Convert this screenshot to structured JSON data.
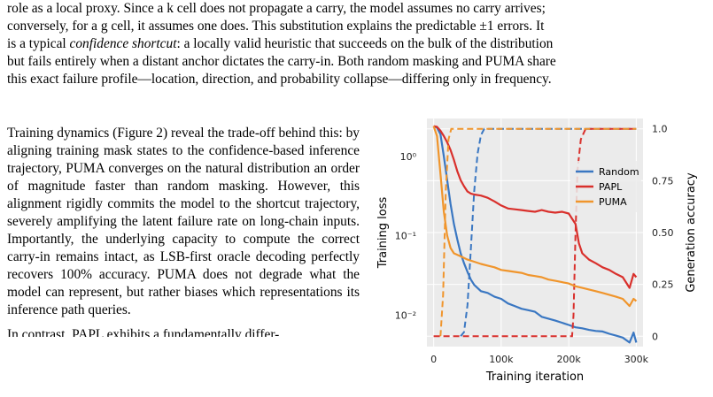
{
  "top_paragraph": {
    "line1": "role as a local proxy. Since a k cell does not propagate a carry, the model assumes no carry arrives;",
    "line2": "conversely, for a g cell, it assumes one does. This substitution explains the predictable ±1 errors. It",
    "line3a": "is a typical ",
    "line3_em": "confidence shortcut",
    "line3b": ": a locally valid heuristic that succeeds on the bulk of the distribution",
    "line4": "but fails entirely when a distant anchor dictates the carry-in. Both random masking and PUMA share",
    "line5": "this exact failure profile—location, direction, and probability collapse—differing only in frequency."
  },
  "left_paragraph": "Training dynamics (Figure 2) reveal the trade-off behind this: by aligning training mask states to the confidence-based inference trajectory, PUMA converges on the natural distribution an order of magnitude faster than random masking. However, this alignment rigidly commits the model to the shortcut trajectory, severely amplifying the latent failure rate on long-chain inputs. Importantly, the underlying capacity to compute the correct carry-in remains intact, as LSB-first oracle decoding perfectly recovers 100% accuracy. PUMA does not degrade what the model can represent, but rather biases which representations its inference path queries.",
  "next_paragraph": "In contrast, PAPL exhibits a fundamentally differ-",
  "chart_data": {
    "type": "line",
    "xlabel": "Training iteration",
    "ylabel_left": "Training loss",
    "ylabel_right": "Generation accuracy",
    "x_ticks": [
      "0",
      "100k",
      "200k",
      "300k"
    ],
    "y_left_ticks": [
      "10⁰",
      "10⁻¹",
      "10⁻²"
    ],
    "y_right_ticks": [
      "0",
      "0.25",
      "0.50",
      "0.75",
      "1.0"
    ],
    "xlim": [
      -10000,
      310000
    ],
    "y_left_scale": "log",
    "y_left_lim": [
      0.004,
      3
    ],
    "y_right_lim": [
      -0.05,
      1.05
    ],
    "legend_position": "upper-right",
    "grid": true,
    "colors": {
      "Random": "#3a77c2",
      "PAPL": "#d9302c",
      "PUMA": "#f0952c"
    },
    "series": [
      {
        "name": "Random",
        "loss": [
          [
            0,
            2.4
          ],
          [
            5000,
            2.3
          ],
          [
            10000,
            1.9
          ],
          [
            15000,
            1.0
          ],
          [
            20000,
            0.5
          ],
          [
            25000,
            0.25
          ],
          [
            30000,
            0.14
          ],
          [
            35000,
            0.09
          ],
          [
            40000,
            0.06
          ],
          [
            45000,
            0.045
          ],
          [
            50000,
            0.035
          ],
          [
            55000,
            0.028
          ],
          [
            60000,
            0.024
          ],
          [
            70000,
            0.02
          ],
          [
            80000,
            0.019
          ],
          [
            90000,
            0.017
          ],
          [
            100000,
            0.016
          ],
          [
            110000,
            0.014
          ],
          [
            120000,
            0.013
          ],
          [
            130000,
            0.012
          ],
          [
            140000,
            0.0115
          ],
          [
            150000,
            0.011
          ],
          [
            160000,
            0.0095
          ],
          [
            170000,
            0.009
          ],
          [
            180000,
            0.0085
          ],
          [
            190000,
            0.008
          ],
          [
            200000,
            0.0075
          ],
          [
            210000,
            0.007
          ],
          [
            220000,
            0.0068
          ],
          [
            230000,
            0.0065
          ],
          [
            240000,
            0.0063
          ],
          [
            250000,
            0.0062
          ],
          [
            260000,
            0.0058
          ],
          [
            270000,
            0.0055
          ],
          [
            280000,
            0.0052
          ],
          [
            290000,
            0.0045
          ],
          [
            296000,
            0.006
          ],
          [
            300000,
            0.0045
          ]
        ],
        "accuracy": [
          [
            40000,
            0.0
          ],
          [
            45000,
            0.02
          ],
          [
            50000,
            0.15
          ],
          [
            55000,
            0.42
          ],
          [
            60000,
            0.7
          ],
          [
            65000,
            0.88
          ],
          [
            70000,
            0.97
          ],
          [
            75000,
            1.0
          ],
          [
            300000,
            1.0
          ]
        ]
      },
      {
        "name": "PAPL",
        "loss": [
          [
            0,
            2.4
          ],
          [
            5000,
            2.35
          ],
          [
            10000,
            2.1
          ],
          [
            15000,
            1.8
          ],
          [
            20000,
            1.5
          ],
          [
            25000,
            1.2
          ],
          [
            30000,
            0.9
          ],
          [
            35000,
            0.65
          ],
          [
            40000,
            0.5
          ],
          [
            45000,
            0.42
          ],
          [
            50000,
            0.36
          ],
          [
            55000,
            0.34
          ],
          [
            60000,
            0.33
          ],
          [
            70000,
            0.32
          ],
          [
            80000,
            0.3
          ],
          [
            90000,
            0.27
          ],
          [
            100000,
            0.24
          ],
          [
            110000,
            0.22
          ],
          [
            120000,
            0.215
          ],
          [
            130000,
            0.21
          ],
          [
            140000,
            0.205
          ],
          [
            150000,
            0.2
          ],
          [
            160000,
            0.21
          ],
          [
            170000,
            0.2
          ],
          [
            180000,
            0.195
          ],
          [
            190000,
            0.2
          ],
          [
            200000,
            0.19
          ],
          [
            210000,
            0.14
          ],
          [
            215000,
            0.08
          ],
          [
            220000,
            0.06
          ],
          [
            230000,
            0.05
          ],
          [
            240000,
            0.045
          ],
          [
            250000,
            0.04
          ],
          [
            260000,
            0.037
          ],
          [
            270000,
            0.033
          ],
          [
            280000,
            0.03
          ],
          [
            290000,
            0.022
          ],
          [
            296000,
            0.033
          ],
          [
            300000,
            0.03
          ]
        ],
        "accuracy": [
          [
            0,
            0.0
          ],
          [
            205000,
            0.0
          ],
          [
            207000,
            0.1
          ],
          [
            210000,
            0.5
          ],
          [
            213000,
            0.8
          ],
          [
            218000,
            0.95
          ],
          [
            225000,
            1.0
          ],
          [
            300000,
            1.0
          ]
        ]
      },
      {
        "name": "PUMA",
        "loss": [
          [
            0,
            2.4
          ],
          [
            5000,
            1.8
          ],
          [
            10000,
            0.6
          ],
          [
            15000,
            0.2
          ],
          [
            20000,
            0.1
          ],
          [
            25000,
            0.07
          ],
          [
            30000,
            0.06
          ],
          [
            40000,
            0.055
          ],
          [
            50000,
            0.05
          ],
          [
            60000,
            0.047
          ],
          [
            70000,
            0.044
          ],
          [
            80000,
            0.042
          ],
          [
            90000,
            0.04
          ],
          [
            100000,
            0.037
          ],
          [
            110000,
            0.036
          ],
          [
            120000,
            0.035
          ],
          [
            130000,
            0.034
          ],
          [
            140000,
            0.032
          ],
          [
            150000,
            0.031
          ],
          [
            160000,
            0.03
          ],
          [
            170000,
            0.028
          ],
          [
            180000,
            0.027
          ],
          [
            190000,
            0.026
          ],
          [
            200000,
            0.025
          ],
          [
            210000,
            0.023
          ],
          [
            220000,
            0.022
          ],
          [
            230000,
            0.021
          ],
          [
            240000,
            0.02
          ],
          [
            250000,
            0.019
          ],
          [
            260000,
            0.018
          ],
          [
            270000,
            0.017
          ],
          [
            280000,
            0.016
          ],
          [
            290000,
            0.013
          ],
          [
            296000,
            0.016
          ],
          [
            300000,
            0.015
          ]
        ],
        "accuracy": [
          [
            10000,
            0.0
          ],
          [
            14000,
            0.2
          ],
          [
            18000,
            0.7
          ],
          [
            22000,
            0.95
          ],
          [
            26000,
            1.0
          ],
          [
            300000,
            1.0
          ]
        ]
      }
    ]
  }
}
